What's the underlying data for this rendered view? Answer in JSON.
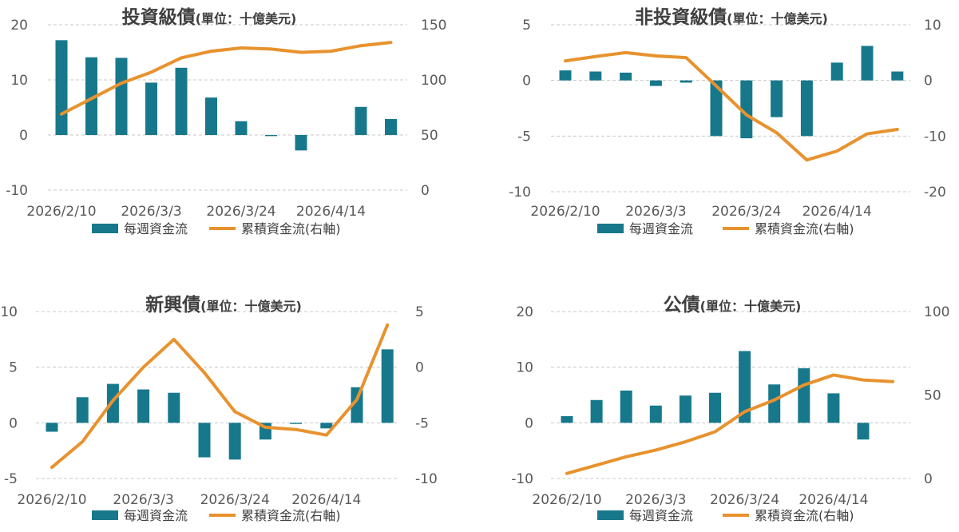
{
  "chart_data": [
    {
      "type": "bar+line",
      "title_main": "投資級債",
      "title_unit": "(單位：十億美元)",
      "x_tick_labels": [
        "2026/2/10",
        "2026/3/3",
        "2026/3/24",
        "2026/4/14"
      ],
      "x_tick_indices": [
        0,
        3,
        6,
        9
      ],
      "left_axis": {
        "ylim": [
          -10,
          20
        ],
        "ticks": [
          -10,
          0,
          10,
          20
        ]
      },
      "right_axis": {
        "ylim": [
          0,
          150
        ],
        "ticks": [
          0,
          50,
          100,
          150
        ]
      },
      "series": [
        {
          "name": "每週資金流",
          "type": "bar",
          "axis": "left",
          "color": "#17788c",
          "values": [
            17.2,
            14.1,
            14.0,
            9.5,
            12.2,
            6.8,
            2.5,
            -0.2,
            -2.8,
            0.0,
            5.1,
            2.9
          ]
        },
        {
          "name": "累積資金流(右軸)",
          "type": "line",
          "axis": "right",
          "color": "#e8922e",
          "values": [
            69,
            83,
            97,
            107,
            120,
            126,
            129,
            128,
            125,
            126,
            131,
            134
          ]
        }
      ],
      "legend": [
        "每週資金流",
        "累積資金流(右軸)"
      ]
    },
    {
      "type": "bar+line",
      "title_main": "非投資級債",
      "title_unit": "(單位：十億美元)",
      "x_tick_labels": [
        "2026/2/10",
        "2026/3/3",
        "2026/3/24",
        "2026/4/14"
      ],
      "x_tick_indices": [
        0,
        3,
        6,
        9
      ],
      "left_axis": {
        "ylim": [
          -10,
          5
        ],
        "ticks": [
          -10,
          -5,
          0,
          5
        ]
      },
      "right_axis": {
        "ylim": [
          -20,
          10
        ],
        "ticks": [
          -20,
          -10,
          0,
          10
        ]
      },
      "series": [
        {
          "name": "每週資金流",
          "type": "bar",
          "axis": "left",
          "color": "#17788c",
          "values": [
            0.9,
            0.8,
            0.7,
            -0.5,
            -0.2,
            -5.0,
            -5.2,
            -3.3,
            -5.0,
            1.6,
            3.1,
            0.8
          ]
        },
        {
          "name": "累積資金流(右軸)",
          "type": "line",
          "axis": "right",
          "color": "#e8922e",
          "values": [
            3.5,
            4.3,
            5.0,
            4.4,
            4.1,
            -1.0,
            -6.2,
            -9.4,
            -14.3,
            -12.7,
            -9.6,
            -8.8
          ]
        }
      ],
      "legend": [
        "每週資金流",
        "累積資金流(右軸)"
      ]
    },
    {
      "type": "bar+line",
      "title_main": "新興債",
      "title_unit": "(單位：十億美元)",
      "x_tick_labels": [
        "2026/2/10",
        "2026/3/3",
        "2026/3/24",
        "2026/4/14"
      ],
      "x_tick_indices": [
        0,
        3,
        6,
        9
      ],
      "left_axis": {
        "ylim": [
          -5,
          10
        ],
        "ticks": [
          -5,
          0,
          5,
          10
        ]
      },
      "right_axis": {
        "ylim": [
          -10,
          5
        ],
        "ticks": [
          -10,
          -5,
          0,
          5
        ]
      },
      "series": [
        {
          "name": "每週資金流",
          "type": "bar",
          "axis": "left",
          "color": "#17788c",
          "values": [
            -0.8,
            2.3,
            3.5,
            3.0,
            2.7,
            -3.1,
            -3.3,
            -1.5,
            -0.1,
            -0.5,
            3.2,
            6.6
          ]
        },
        {
          "name": "累積資金流(右軸)",
          "type": "line",
          "axis": "right",
          "color": "#e8922e",
          "values": [
            -9.0,
            -6.7,
            -3.0,
            0.0,
            2.5,
            -0.5,
            -4.0,
            -5.4,
            -5.6,
            -6.1,
            -2.9,
            3.8
          ]
        }
      ],
      "legend": [
        "每週資金流",
        "累積資金流(右軸)"
      ]
    },
    {
      "type": "bar+line",
      "title_main": "公債",
      "title_unit": "(單位：十億美元)",
      "x_tick_labels": [
        "2026/2/10",
        "2026/3/3",
        "2026/3/24",
        "2026/4/14"
      ],
      "x_tick_indices": [
        0,
        3,
        6,
        9
      ],
      "left_axis": {
        "ylim": [
          -10,
          20
        ],
        "ticks": [
          -10,
          0,
          10,
          20
        ]
      },
      "right_axis": {
        "ylim": [
          0,
          100
        ],
        "ticks": [
          0,
          50,
          100
        ]
      },
      "series": [
        {
          "name": "每週資金流",
          "type": "bar",
          "axis": "left",
          "color": "#17788c",
          "values": [
            1.2,
            4.1,
            5.8,
            3.1,
            4.9,
            5.4,
            12.9,
            6.9,
            9.8,
            5.3,
            -3.0,
            0.0
          ]
        },
        {
          "name": "累積資金流(右軸)",
          "type": "line",
          "axis": "right",
          "color": "#e8922e",
          "values": [
            3,
            8,
            13,
            17,
            22,
            28,
            40,
            47,
            56,
            62,
            59,
            58
          ]
        }
      ],
      "legend": [
        "每週資金流",
        "累積資金流(右軸)"
      ]
    }
  ]
}
